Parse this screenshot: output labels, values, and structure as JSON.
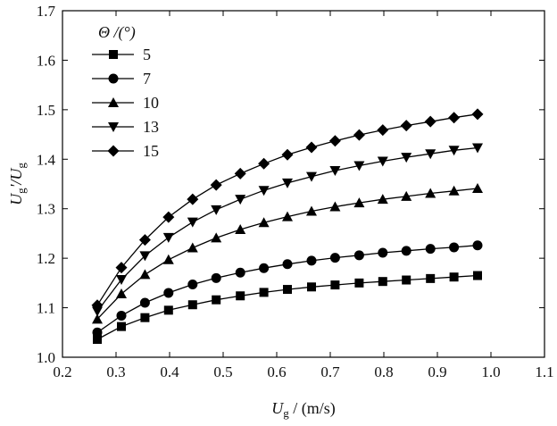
{
  "chart_data": {
    "type": "line",
    "title": "",
    "xlabel": {
      "main": "U",
      "sub": "g",
      "rest": " / (m/s)"
    },
    "ylabel": {
      "main": "U",
      "sub1": "g",
      "mid": "'/U",
      "sub2": "g"
    },
    "xlim": [
      0.2,
      1.1
    ],
    "ylim": [
      1.0,
      1.7
    ],
    "xticks": [
      "0.2",
      "0.3",
      "0.4",
      "0.5",
      "0.6",
      "0.7",
      "0.8",
      "0.9",
      "1.0",
      "1.1"
    ],
    "yticks": [
      "1.0",
      "1.1",
      "1.2",
      "1.3",
      "1.4",
      "1.5",
      "1.6",
      "1.7"
    ],
    "legend_title": "Θ /(°)",
    "legend_position": "top-left",
    "x": [
      0.265,
      0.31,
      0.354,
      0.398,
      0.443,
      0.487,
      0.532,
      0.576,
      0.62,
      0.665,
      0.709,
      0.754,
      0.798,
      0.842,
      0.887,
      0.931,
      0.975
    ],
    "series": [
      {
        "name": "5",
        "marker": "square",
        "values": [
          1.036,
          1.062,
          1.08,
          1.095,
          1.106,
          1.116,
          1.124,
          1.131,
          1.137,
          1.142,
          1.146,
          1.15,
          1.153,
          1.156,
          1.159,
          1.162,
          1.165
        ]
      },
      {
        "name": "7",
        "marker": "circle",
        "values": [
          1.05,
          1.084,
          1.11,
          1.13,
          1.147,
          1.16,
          1.171,
          1.18,
          1.188,
          1.195,
          1.201,
          1.206,
          1.211,
          1.215,
          1.219,
          1.222,
          1.226
        ]
      },
      {
        "name": "10",
        "marker": "triangle-up",
        "values": [
          1.077,
          1.128,
          1.167,
          1.197,
          1.221,
          1.241,
          1.258,
          1.272,
          1.284,
          1.295,
          1.304,
          1.312,
          1.319,
          1.325,
          1.331,
          1.336,
          1.341
        ]
      },
      {
        "name": "13",
        "marker": "triangle-down",
        "values": [
          1.093,
          1.157,
          1.205,
          1.242,
          1.273,
          1.298,
          1.319,
          1.337,
          1.352,
          1.365,
          1.377,
          1.387,
          1.396,
          1.404,
          1.411,
          1.418,
          1.423
        ]
      },
      {
        "name": "15",
        "marker": "diamond",
        "values": [
          1.105,
          1.181,
          1.237,
          1.283,
          1.319,
          1.348,
          1.371,
          1.391,
          1.409,
          1.424,
          1.437,
          1.449,
          1.459,
          1.468,
          1.476,
          1.484,
          1.491
        ]
      }
    ]
  }
}
